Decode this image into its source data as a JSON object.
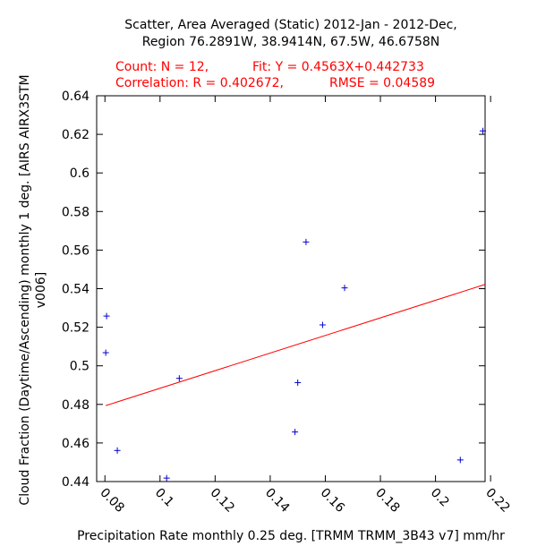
{
  "chart_data": {
    "type": "scatter",
    "title": [
      "Scatter, Area Averaged (Static) 2012-Jan - 2012-Dec,",
      "Region 76.2891W, 38.9414N, 67.5W, 46.6758N"
    ],
    "stats": [
      {
        "count": "Count: N = 12,",
        "fit": "Fit: Y = 0.4563X+0.442733"
      },
      {
        "correlation": "Correlation: R = 0.402672,",
        "rmse": "RMSE = 0.04589"
      }
    ],
    "xlabel": "Precipitation Rate monthly 0.25 deg. [TRMM TRMM_3B43 v7] mm/hr",
    "ylabel": [
      "Cloud Fraction (Daytime/Ascending) monthly 1 deg. [AIRS AIRX3STM",
      "v006]"
    ],
    "xlim": [
      0.077,
      0.218
    ],
    "ylim": [
      0.44,
      0.64
    ],
    "xticks": [
      0.08,
      0.1,
      0.12,
      0.14,
      0.16,
      0.18,
      0.2,
      0.22
    ],
    "xtick_labels": [
      "0.08",
      "0.1",
      "0.12",
      "0.14",
      "0.16",
      "0.18",
      "0.2",
      "0.22"
    ],
    "yticks": [
      0.44,
      0.46,
      0.48,
      0.5,
      0.52,
      0.54,
      0.56,
      0.58,
      0.6,
      0.62,
      0.64
    ],
    "ytick_labels": [
      "0.44",
      "0.46",
      "0.48",
      "0.5",
      "0.52",
      "0.54",
      "0.56",
      "0.58",
      "0.6",
      "0.62",
      "0.64"
    ],
    "points": [
      {
        "x": 0.0806,
        "y": 0.5258
      },
      {
        "x": 0.0803,
        "y": 0.5068
      },
      {
        "x": 0.0845,
        "y": 0.4561
      },
      {
        "x": 0.1024,
        "y": 0.4418
      },
      {
        "x": 0.107,
        "y": 0.4935
      },
      {
        "x": 0.149,
        "y": 0.4657
      },
      {
        "x": 0.15,
        "y": 0.4913
      },
      {
        "x": 0.153,
        "y": 0.5642
      },
      {
        "x": 0.159,
        "y": 0.5212
      },
      {
        "x": 0.167,
        "y": 0.5404
      },
      {
        "x": 0.209,
        "y": 0.4512
      },
      {
        "x": 0.2172,
        "y": 0.6218
      }
    ],
    "fit": {
      "slope": 0.4563,
      "intercept": 0.442733
    },
    "point_color": "#0000cc",
    "fit_color": "#ff0000",
    "grid": false
  }
}
